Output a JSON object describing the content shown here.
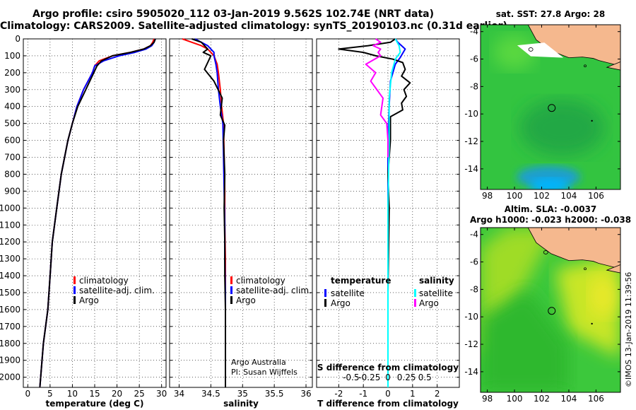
{
  "header": {
    "title1": "Argo profile: csiro 5905020_112 03-Jan-2019 9.562S 102.74E (NRT data)",
    "title2": "Climatology: CARS2009. Satellite-adjusted climatology: synTS_20190103.nc (0.31d earlier)"
  },
  "stamp": "©IMOS 13-Jan-2019 11:39:56",
  "colors": {
    "climatology": "#ff0000",
    "satellite": "#0000ff",
    "argo": "#000000",
    "sat_salinity": "#00ffff",
    "argo_salinity": "#ff00ff",
    "land": "#f5b88e"
  },
  "chart_data": [
    {
      "type": "line",
      "id": "temperature",
      "xlabel": "temperature (deg C)",
      "ylabel": "",
      "xlim": [
        -1,
        31
      ],
      "ylim": [
        2060,
        0
      ],
      "xticks": [
        0,
        5,
        10,
        15,
        20,
        25,
        30
      ],
      "xtick_labels": [
        "0",
        "5",
        "10",
        "15",
        "20",
        "25",
        "30"
      ],
      "yticks": [
        0,
        100,
        200,
        300,
        400,
        500,
        600,
        700,
        800,
        900,
        1000,
        1100,
        1200,
        1300,
        1400,
        1500,
        1600,
        1700,
        1800,
        1900,
        2000
      ],
      "ytick_labels": [
        "0",
        "100",
        "200",
        "300",
        "400",
        "500",
        "600",
        "700",
        "800",
        "900",
        "1000",
        "1100",
        "1200",
        "1300",
        "1400",
        "1500",
        "1600",
        "1700",
        "1800",
        "1900",
        "2000"
      ],
      "series": [
        {
          "name": "climatology",
          "color": "#ff0000",
          "x": [
            28.3,
            28,
            27.5,
            26,
            23,
            19,
            16,
            15,
            14.5,
            12.5,
            11,
            10,
            9,
            7.5,
            6.5,
            5.5,
            5,
            4.5,
            3.5,
            2.7
          ],
          "y": [
            0,
            20,
            40,
            60,
            80,
            100,
            130,
            160,
            200,
            300,
            400,
            500,
            600,
            800,
            1000,
            1200,
            1400,
            1600,
            1800,
            2060
          ]
        },
        {
          "name": "satellite-adj. clim.",
          "color": "#0000ff",
          "x": [
            28.6,
            28.3,
            27.8,
            26.5,
            24,
            20.5,
            17,
            15,
            14.5,
            12.5,
            11,
            10,
            9,
            7.5,
            6.5,
            5.5,
            5,
            4.5,
            3.5,
            2.7
          ],
          "y": [
            0,
            20,
            40,
            60,
            80,
            100,
            130,
            160,
            200,
            300,
            400,
            500,
            600,
            800,
            1000,
            1200,
            1400,
            1600,
            1800,
            2060
          ]
        },
        {
          "name": "Argo",
          "color": "#000000",
          "x": [
            28.6,
            28.3,
            27.5,
            26,
            23,
            19,
            16.5,
            15.5,
            14.8,
            13,
            11.2,
            10,
            9,
            7.5,
            6.5,
            5.5,
            5,
            4.5,
            3.5,
            2.7
          ],
          "y": [
            0,
            20,
            40,
            60,
            80,
            100,
            130,
            160,
            200,
            300,
            400,
            500,
            600,
            800,
            1000,
            1200,
            1400,
            1600,
            1800,
            2060
          ]
        }
      ],
      "legend": [
        "climatology",
        "satellite-adj. clim.",
        "Argo"
      ],
      "legend_position": "bottom-right"
    },
    {
      "type": "line",
      "id": "salinity",
      "xlabel": "salinity",
      "ylabel": "",
      "xlim": [
        33.85,
        36.1
      ],
      "ylim": [
        2060,
        0
      ],
      "xticks": [
        34,
        34.5,
        35,
        35.5,
        36
      ],
      "xtick_labels": [
        "34",
        "34.5",
        "35",
        "35.5",
        "36"
      ],
      "series": [
        {
          "name": "climatology",
          "color": "#ff0000",
          "x": [
            34.05,
            34.2,
            34.35,
            34.45,
            34.5,
            34.55,
            34.6,
            34.62,
            34.65,
            34.67,
            34.7,
            34.71,
            34.72,
            34.72,
            34.73,
            34.73,
            34.73,
            34.73
          ],
          "y": [
            0,
            20,
            40,
            60,
            80,
            100,
            150,
            200,
            300,
            400,
            500,
            700,
            900,
            1100,
            1300,
            1500,
            1800,
            2060
          ]
        },
        {
          "name": "satellite-adj. clim.",
          "color": "#0000ff",
          "x": [
            34.25,
            34.35,
            34.45,
            34.5,
            34.55,
            34.55,
            34.58,
            34.6,
            34.62,
            34.65,
            34.69,
            34.7,
            34.71,
            34.72,
            34.72,
            34.73,
            34.73,
            34.73
          ],
          "y": [
            0,
            20,
            40,
            60,
            80,
            100,
            150,
            200,
            300,
            400,
            500,
            700,
            900,
            1100,
            1300,
            1500,
            1800,
            2060
          ]
        },
        {
          "name": "Argo",
          "color": "#000000",
          "x": [
            34.2,
            34.35,
            34.4,
            34.45,
            34.38,
            34.5,
            34.45,
            34.4,
            34.55,
            34.68,
            34.65,
            34.72,
            34.7,
            34.72,
            34.71,
            34.72,
            34.72,
            34.73,
            34.73,
            34.73
          ],
          "y": [
            0,
            20,
            40,
            60,
            80,
            100,
            140,
            180,
            250,
            350,
            450,
            510,
            600,
            800,
            1000,
            1200,
            1400,
            1600,
            1800,
            2060
          ]
        }
      ],
      "legend": [
        "climatology",
        "satellite-adj. clim.",
        "Argo"
      ],
      "legend_position": "bottom-right",
      "annotations": [
        "Argo Australia",
        "PI: Susan Wijffels"
      ]
    },
    {
      "type": "line",
      "id": "difference",
      "xlabel": "T difference from climatology",
      "xlabel2": "S difference from climatology",
      "xlim": [
        -2.9,
        2.9
      ],
      "ylim": [
        2060,
        0
      ],
      "xticks": [
        -2,
        -1,
        0,
        1,
        2
      ],
      "xtick_labels": [
        "-2",
        "-1",
        "0",
        "1",
        "2"
      ],
      "xticks2": [
        -1.5,
        -0.75,
        0,
        0.75,
        1.5
      ],
      "xtick_labels2": [
        "-0.5",
        "-0.25",
        "0",
        "0.25",
        "0.5"
      ],
      "series": [
        {
          "name": "temperature satellite",
          "color": "#0000ff",
          "x": [
            0.3,
            0.4,
            0.7,
            0.5,
            0.3,
            0.1,
            0.05,
            0,
            0,
            0,
            0,
            0
          ],
          "y": [
            0,
            20,
            60,
            110,
            150,
            250,
            400,
            600,
            900,
            1300,
            1700,
            2060
          ]
        },
        {
          "name": "temperature Argo",
          "color": "#000000",
          "x": [
            0.3,
            0.1,
            -0.8,
            -2.0,
            -1.0,
            -0.5,
            0.2,
            0.6,
            0.7,
            0.55,
            0.9,
            0.65,
            0.75,
            0.55,
            0.6,
            0.1,
            0.1,
            0.1,
            0,
            0.05,
            0,
            0
          ],
          "y": [
            0,
            20,
            40,
            60,
            80,
            100,
            120,
            140,
            180,
            220,
            260,
            300,
            340,
            380,
            420,
            460,
            500,
            600,
            800,
            1000,
            1500,
            2060
          ]
        },
        {
          "name": "salinity satellite",
          "color": "#00ffff",
          "x": [
            0.3,
            0.45,
            0.5,
            0.3,
            0.15,
            0.05,
            0.05,
            0,
            0,
            0
          ],
          "y": [
            0,
            40,
            80,
            120,
            200,
            350,
            600,
            1000,
            1500,
            2060
          ]
        },
        {
          "name": "salinity Argo",
          "color": "#ff00ff",
          "x": [
            -0.5,
            -0.3,
            -0.6,
            -0.3,
            -0.4,
            -0.3,
            -0.9,
            -0.5,
            -0.7,
            -0.2,
            -0.3,
            -0.05,
            0,
            0
          ],
          "y": [
            0,
            20,
            40,
            60,
            80,
            100,
            150,
            200,
            250,
            350,
            450,
            500,
            600,
            700
          ]
        }
      ],
      "legend_left_title": "temperature",
      "legend_right_title": "salinity",
      "legend_left": [
        "satellite",
        "Argo"
      ],
      "legend_right": [
        "satellite",
        "Argo"
      ]
    },
    {
      "type": "heatmap",
      "id": "sst_map",
      "title": "sat. SST: 27.8 Argo: 28",
      "xlim": [
        97.5,
        107.8
      ],
      "ylim": [
        -15.5,
        -3.5
      ],
      "xticks": [
        98,
        100,
        102,
        104,
        106
      ],
      "xtick_labels": [
        "98",
        "100",
        "102",
        "104",
        "106"
      ],
      "yticks": [
        -4,
        -6,
        -8,
        -10,
        -12,
        -14
      ],
      "ytick_labels": [
        "-4",
        "-6",
        "-8",
        "-10",
        "-12",
        "-14"
      ],
      "marker": {
        "lon": 102.74,
        "lat": -9.562
      }
    },
    {
      "type": "heatmap",
      "id": "sla_map",
      "title": "Altim. SLA: -0.0037",
      "subtitle": "Argo h1000: -0.023 h2000: -0.038",
      "xlim": [
        97.5,
        107.8
      ],
      "ylim": [
        -15.5,
        -3.5
      ],
      "xticks": [
        98,
        100,
        102,
        104,
        106
      ],
      "xtick_labels": [
        "98",
        "100",
        "102",
        "104",
        "106"
      ],
      "yticks": [
        -4,
        -6,
        -8,
        -10,
        -12,
        -14
      ],
      "ytick_labels": [
        "-4",
        "-6",
        "-8",
        "-10",
        "-12",
        "-14"
      ],
      "marker": {
        "lon": 102.74,
        "lat": -9.562
      }
    }
  ]
}
